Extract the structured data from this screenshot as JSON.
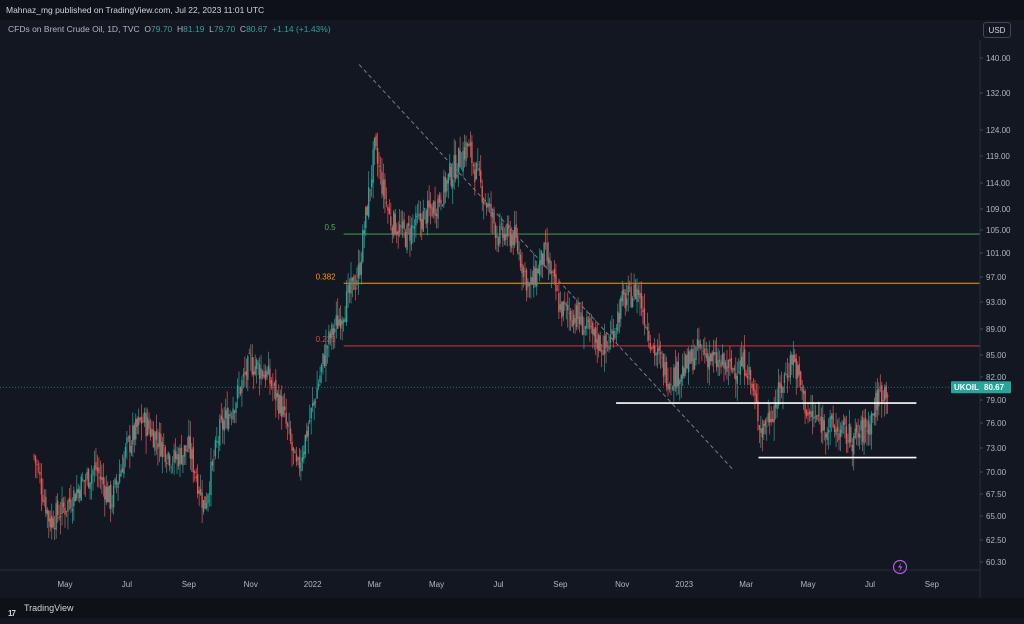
{
  "header": {
    "publisher_text": "Mahnaz_mg published on TradingView.com, Jul 22, 2023 11:01 UTC"
  },
  "legend": {
    "symbol_text": "CFDs on Brent Crude Oil, 1D, TVC",
    "open_label": "O",
    "open_value": "79.70",
    "high_label": "H",
    "high_value": "81.19",
    "low_label": "L",
    "low_value": "79.70",
    "close_label": "C",
    "close_value": "80.67",
    "change_value": "+1.14 (+1.43%)"
  },
  "currency_button": "USD",
  "footer": {
    "brand": "TradingView",
    "logo": "17"
  },
  "colors": {
    "up": "#26a69a",
    "down": "#ef5350",
    "bg": "#131722"
  },
  "chart_data": {
    "type": "candlestick",
    "y_axis": {
      "ticks": [
        60.3,
        62.5,
        65.0,
        67.5,
        70.0,
        73.0,
        76.0,
        79.0,
        82.0,
        85.0,
        89.0,
        93.0,
        97.0,
        101.0,
        105.0,
        109.0,
        114.0,
        119.0,
        124.0,
        132.0,
        140.0
      ],
      "tick_labels": [
        "60.30",
        "62.50",
        "65.00",
        "67.50",
        "70.00",
        "73.00",
        "76.00",
        "79.00",
        "82.00",
        "85.00",
        "89.00",
        "93.00",
        "97.00",
        "101.00",
        "105.00",
        "109.00",
        "114.00",
        "119.00",
        "124.00",
        "132.00",
        "140.00"
      ],
      "range": [
        59.5,
        143.5
      ]
    },
    "x_axis": {
      "labels": [
        "May",
        "Jul",
        "Sep",
        "Nov",
        "2022",
        "Mar",
        "May",
        "Jul",
        "Sep",
        "Nov",
        "2023",
        "Mar",
        "May",
        "Jul",
        "Sep"
      ],
      "months_index": [
        4,
        6,
        8,
        10,
        12,
        14,
        16,
        18,
        20,
        22,
        24,
        26,
        28,
        30,
        32
      ],
      "range": [
        3.0,
        33.9
      ]
    },
    "price_line": {
      "label": "UKOIL",
      "value": 80.67,
      "display": "80.67"
    },
    "fibonacci": [
      {
        "level_label": "0.5",
        "price": 104.3,
        "color": "#4caf50",
        "from_month": 13.0
      },
      {
        "level_label": "0.382",
        "price": 96.0,
        "color": "#ff9800",
        "from_month": 13.0
      },
      {
        "level_label": "0.236",
        "price": 86.4,
        "color": "#f23645",
        "from_month": 13.0
      }
    ],
    "trendlines": [
      {
        "kind": "diagonal-dashed",
        "points": [
          [
            13.5,
            138.5
          ],
          [
            25.6,
            70.2
          ]
        ],
        "color": "#787b86"
      },
      {
        "kind": "support",
        "points": [
          [
            21.8,
            78.6
          ],
          [
            31.5,
            78.6
          ]
        ],
        "color": "#ffffff"
      },
      {
        "kind": "support",
        "points": [
          [
            26.4,
            71.8
          ],
          [
            31.5,
            71.8
          ]
        ],
        "color": "#ffffff"
      }
    ],
    "series": [
      {
        "x": 3.0,
        "close": 72.0
      },
      {
        "x": 3.5,
        "close": 64.5
      },
      {
        "x": 4.0,
        "close": 66.0
      },
      {
        "x": 4.5,
        "close": 68.5
      },
      {
        "x": 5.0,
        "close": 70.5
      },
      {
        "x": 5.5,
        "close": 66.5
      },
      {
        "x": 6.0,
        "close": 73.0
      },
      {
        "x": 6.5,
        "close": 76.5
      },
      {
        "x": 7.0,
        "close": 74.0
      },
      {
        "x": 7.5,
        "close": 71.5
      },
      {
        "x": 8.0,
        "close": 73.0
      },
      {
        "x": 8.5,
        "close": 66.0
      },
      {
        "x": 9.0,
        "close": 75.0
      },
      {
        "x": 9.5,
        "close": 79.0
      },
      {
        "x": 10.0,
        "close": 84.0
      },
      {
        "x": 10.5,
        "close": 82.5
      },
      {
        "x": 11.0,
        "close": 78.0
      },
      {
        "x": 11.5,
        "close": 70.0
      },
      {
        "x": 12.0,
        "close": 78.0
      },
      {
        "x": 12.5,
        "close": 87.0
      },
      {
        "x": 13.0,
        "close": 92.0
      },
      {
        "x": 13.5,
        "close": 98.0
      },
      {
        "x": 14.0,
        "close": 120.0
      },
      {
        "x": 14.5,
        "close": 107.0
      },
      {
        "x": 15.0,
        "close": 104.0
      },
      {
        "x": 15.5,
        "close": 107.0
      },
      {
        "x": 16.0,
        "close": 110.0
      },
      {
        "x": 16.5,
        "close": 116.0
      },
      {
        "x": 17.0,
        "close": 121.0
      },
      {
        "x": 17.5,
        "close": 112.0
      },
      {
        "x": 18.0,
        "close": 104.0
      },
      {
        "x": 18.5,
        "close": 104.0
      },
      {
        "x": 19.0,
        "close": 95.0
      },
      {
        "x": 19.5,
        "close": 101.0
      },
      {
        "x": 20.0,
        "close": 92.0
      },
      {
        "x": 20.5,
        "close": 91.0
      },
      {
        "x": 21.0,
        "close": 88.0
      },
      {
        "x": 21.5,
        "close": 86.0
      },
      {
        "x": 22.0,
        "close": 93.0
      },
      {
        "x": 22.5,
        "close": 95.0
      },
      {
        "x": 23.0,
        "close": 86.0
      },
      {
        "x": 23.5,
        "close": 82.0
      },
      {
        "x": 24.0,
        "close": 83.0
      },
      {
        "x": 24.5,
        "close": 86.0
      },
      {
        "x": 25.0,
        "close": 84.0
      },
      {
        "x": 25.5,
        "close": 83.0
      },
      {
        "x": 26.0,
        "close": 84.0
      },
      {
        "x": 26.5,
        "close": 75.0
      },
      {
        "x": 27.0,
        "close": 79.0
      },
      {
        "x": 27.5,
        "close": 85.0
      },
      {
        "x": 28.0,
        "close": 77.0
      },
      {
        "x": 28.5,
        "close": 76.0
      },
      {
        "x": 29.0,
        "close": 75.0
      },
      {
        "x": 29.5,
        "close": 74.0
      },
      {
        "x": 30.0,
        "close": 76.0
      },
      {
        "x": 30.3,
        "close": 80.0
      },
      {
        "x": 30.6,
        "close": 80.67
      }
    ],
    "grid": false
  }
}
